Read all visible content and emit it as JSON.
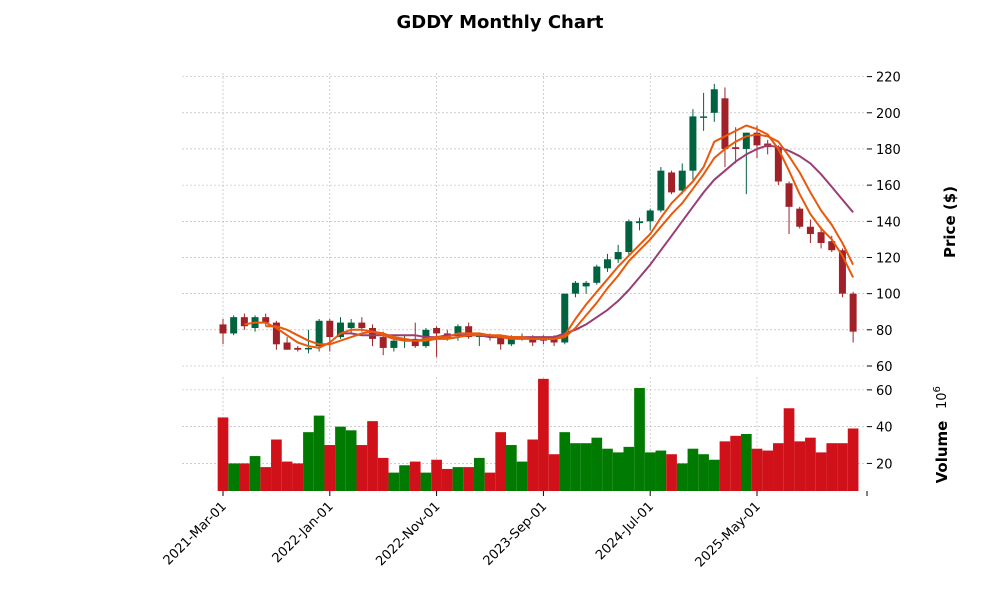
{
  "chart_data": {
    "type": "candlestick",
    "title": "GDDY Monthly Chart",
    "price_axis": {
      "label": "Price ($)",
      "ylim": [
        60,
        222
      ],
      "ticks": [
        60,
        80,
        100,
        120,
        140,
        160,
        180,
        200,
        220
      ]
    },
    "volume_axis": {
      "label": "Volume",
      "exponent_label": "10",
      "exponent": "6",
      "ylim": [
        5,
        67
      ],
      "ticks": [
        20,
        40,
        60
      ]
    },
    "x_tick_labels": [
      "2021-Mar-01",
      "2022-Jan-01",
      "2022-Nov-01",
      "2023-Sep-01",
      "2024-Jul-01",
      "2025-May-01"
    ],
    "x_tick_indices": [
      0,
      10,
      20,
      30,
      40,
      50
    ],
    "grid": true,
    "colors": {
      "up": "#006340",
      "down": "#a02128",
      "vol_up": "#007a00",
      "vol_down": "#d0111a",
      "ma_short": "#e8590c",
      "ma_mid": "#e8590c",
      "ma_long": "#9b3d72"
    },
    "candles": [
      {
        "date": "2021-Mar",
        "o": 83,
        "h": 86,
        "l": 72,
        "c": 78
      },
      {
        "date": "2021-Apr",
        "o": 78,
        "h": 88,
        "l": 77,
        "c": 87
      },
      {
        "date": "2021-May",
        "o": 87,
        "h": 89,
        "l": 80,
        "c": 82
      },
      {
        "date": "2021-Jun",
        "o": 81,
        "h": 88,
        "l": 79,
        "c": 87
      },
      {
        "date": "2021-Jul",
        "o": 87,
        "h": 89,
        "l": 82,
        "c": 84
      },
      {
        "date": "2021-Aug",
        "o": 84,
        "h": 85,
        "l": 69,
        "c": 72
      },
      {
        "date": "2021-Sep",
        "o": 73,
        "h": 76,
        "l": 69,
        "c": 69
      },
      {
        "date": "2021-Oct",
        "o": 70,
        "h": 71,
        "l": 68,
        "c": 69
      },
      {
        "date": "2021-Nov",
        "o": 70,
        "h": 80,
        "l": 67,
        "c": 70
      },
      {
        "date": "2021-Dec",
        "o": 71,
        "h": 86,
        "l": 68,
        "c": 85
      },
      {
        "date": "2022-Jan",
        "o": 85,
        "h": 86,
        "l": 68,
        "c": 76
      },
      {
        "date": "2022-Feb",
        "o": 76,
        "h": 87,
        "l": 75,
        "c": 84
      },
      {
        "date": "2022-Mar",
        "o": 81,
        "h": 86,
        "l": 78,
        "c": 84
      },
      {
        "date": "2022-Apr",
        "o": 84,
        "h": 87,
        "l": 79,
        "c": 81
      },
      {
        "date": "2022-May",
        "o": 81,
        "h": 83,
        "l": 71,
        "c": 75
      },
      {
        "date": "2022-Jun",
        "o": 76,
        "h": 79,
        "l": 66,
        "c": 70
      },
      {
        "date": "2022-Jul",
        "o": 70,
        "h": 77,
        "l": 68,
        "c": 74
      },
      {
        "date": "2022-Aug",
        "o": 74,
        "h": 77,
        "l": 70,
        "c": 75
      },
      {
        "date": "2022-Sep",
        "o": 75,
        "h": 84,
        "l": 70,
        "c": 71
      },
      {
        "date": "2022-Oct",
        "o": 71,
        "h": 81,
        "l": 70,
        "c": 80
      },
      {
        "date": "2022-Nov",
        "o": 81,
        "h": 82,
        "l": 65,
        "c": 78
      },
      {
        "date": "2022-Dec",
        "o": 78,
        "h": 80,
        "l": 74,
        "c": 75
      },
      {
        "date": "2023-Jan",
        "o": 78,
        "h": 83,
        "l": 74,
        "c": 82
      },
      {
        "date": "2023-Feb",
        "o": 82,
        "h": 84,
        "l": 75,
        "c": 76
      },
      {
        "date": "2023-Mar",
        "o": 76,
        "h": 78,
        "l": 71,
        "c": 77
      },
      {
        "date": "2023-Apr",
        "o": 77,
        "h": 78,
        "l": 74,
        "c": 76
      },
      {
        "date": "2023-May",
        "o": 76,
        "h": 77,
        "l": 69,
        "c": 72
      },
      {
        "date": "2023-Jun",
        "o": 72,
        "h": 77,
        "l": 71,
        "c": 75
      },
      {
        "date": "2023-Jul",
        "o": 75,
        "h": 78,
        "l": 74,
        "c": 76
      },
      {
        "date": "2023-Aug",
        "o": 75,
        "h": 77,
        "l": 71,
        "c": 73
      },
      {
        "date": "2023-Sep",
        "o": 76,
        "h": 77,
        "l": 72,
        "c": 74
      },
      {
        "date": "2023-Oct",
        "o": 76,
        "h": 77,
        "l": 71,
        "c": 73
      },
      {
        "date": "2023-Nov",
        "o": 73,
        "h": 100,
        "l": 72,
        "c": 100
      },
      {
        "date": "2023-Dec",
        "o": 100,
        "h": 107,
        "l": 98,
        "c": 106
      },
      {
        "date": "2024-Jan",
        "o": 104,
        "h": 107,
        "l": 100,
        "c": 106
      },
      {
        "date": "2024-Feb",
        "o": 106,
        "h": 116,
        "l": 105,
        "c": 115
      },
      {
        "date": "2024-Mar",
        "o": 114,
        "h": 122,
        "l": 112,
        "c": 119
      },
      {
        "date": "2024-Apr",
        "o": 119,
        "h": 127,
        "l": 117,
        "c": 123
      },
      {
        "date": "2024-May",
        "o": 123,
        "h": 141,
        "l": 121,
        "c": 140
      },
      {
        "date": "2024-Jun",
        "o": 139,
        "h": 142,
        "l": 135,
        "c": 140
      },
      {
        "date": "2024-Jul",
        "o": 140,
        "h": 147,
        "l": 135,
        "c": 146
      },
      {
        "date": "2024-Aug",
        "o": 146,
        "h": 170,
        "l": 145,
        "c": 168
      },
      {
        "date": "2024-Sep",
        "o": 167,
        "h": 168,
        "l": 155,
        "c": 156
      },
      {
        "date": "2024-Oct",
        "o": 157,
        "h": 172,
        "l": 155,
        "c": 168
      },
      {
        "date": "2024-Nov",
        "o": 168,
        "h": 202,
        "l": 163,
        "c": 198
      },
      {
        "date": "2024-Dec",
        "o": 198,
        "h": 211,
        "l": 190,
        "c": 198
      },
      {
        "date": "2025-Jan",
        "o": 200,
        "h": 216,
        "l": 195,
        "c": 213
      },
      {
        "date": "2025-Feb",
        "o": 208,
        "h": 214,
        "l": 170,
        "c": 180
      },
      {
        "date": "2025-Mar",
        "o": 181,
        "h": 192,
        "l": 172,
        "c": 180
      },
      {
        "date": "2025-Apr",
        "o": 180,
        "h": 189,
        "l": 155,
        "c": 189
      },
      {
        "date": "2025-May",
        "o": 189,
        "h": 193,
        "l": 175,
        "c": 182
      },
      {
        "date": "2025-Jun",
        "o": 183,
        "h": 185,
        "l": 177,
        "c": 181
      },
      {
        "date": "2025-Jul",
        "o": 181,
        "h": 182,
        "l": 160,
        "c": 162
      },
      {
        "date": "2025-Aug",
        "o": 161,
        "h": 162,
        "l": 133,
        "c": 148
      },
      {
        "date": "2025-Sep",
        "o": 147,
        "h": 148,
        "l": 136,
        "c": 137
      },
      {
        "date": "2025-Oct",
        "o": 137,
        "h": 141,
        "l": 128,
        "c": 133
      },
      {
        "date": "2025-Nov",
        "o": 134,
        "h": 137,
        "l": 125,
        "c": 128
      },
      {
        "date": "2025-Dec",
        "o": 129,
        "h": 132,
        "l": 123,
        "c": 124
      },
      {
        "date": "2026-Jan",
        "o": 124,
        "h": 125,
        "l": 98,
        "c": 100
      },
      {
        "date": "2026-Feb",
        "o": 100,
        "h": 101,
        "l": 73,
        "c": 79
      }
    ],
    "volume": [
      45,
      20,
      20,
      24,
      18,
      33,
      21,
      20,
      37,
      46,
      30,
      40,
      38,
      30,
      43,
      23,
      15,
      19,
      21,
      15,
      22,
      17,
      18,
      18,
      23,
      15,
      37,
      30,
      21,
      33,
      66,
      25,
      37,
      31,
      31,
      34,
      28,
      26,
      29,
      61,
      26,
      27,
      25,
      20,
      28,
      25,
      22,
      32,
      35,
      36,
      28,
      27,
      31,
      50,
      32,
      34,
      26,
      31,
      31,
      39
    ],
    "ma_short": [
      null,
      null,
      83,
      84,
      84,
      81,
      77,
      73,
      71,
      70,
      73,
      78,
      80,
      80,
      79,
      77,
      75,
      74,
      74,
      75,
      76,
      76,
      78,
      78,
      78,
      77,
      76,
      75,
      75,
      75,
      75,
      75,
      77,
      86,
      94,
      101,
      108,
      115,
      121,
      127,
      133,
      142,
      150,
      156,
      162,
      170,
      184,
      187,
      190,
      193,
      191,
      188,
      180,
      168,
      155,
      144,
      136,
      130,
      121,
      109
    ],
    "ma_mid": [
      null,
      null,
      null,
      null,
      82,
      82,
      80,
      77,
      74,
      72,
      72,
      74,
      76,
      78,
      79,
      78,
      76,
      75,
      74,
      74,
      75,
      75,
      76,
      77,
      77,
      77,
      77,
      76,
      76,
      75,
      75,
      75,
      76,
      81,
      88,
      95,
      103,
      110,
      118,
      124,
      130,
      137,
      144,
      150,
      158,
      166,
      175,
      180,
      184,
      187,
      188,
      187,
      184,
      176,
      167,
      156,
      146,
      138,
      128,
      116
    ],
    "ma_long": [
      null,
      null,
      null,
      null,
      null,
      null,
      null,
      null,
      null,
      null,
      null,
      78,
      78,
      77,
      77,
      77,
      77,
      77,
      77,
      76,
      76,
      77,
      77,
      77,
      77,
      76,
      76,
      76,
      76,
      76,
      76,
      76,
      78,
      80,
      83,
      87,
      91,
      96,
      102,
      109,
      116,
      124,
      132,
      140,
      148,
      156,
      163,
      168,
      173,
      177,
      180,
      182,
      181,
      179,
      176,
      172,
      166,
      159,
      152,
      145
    ]
  }
}
